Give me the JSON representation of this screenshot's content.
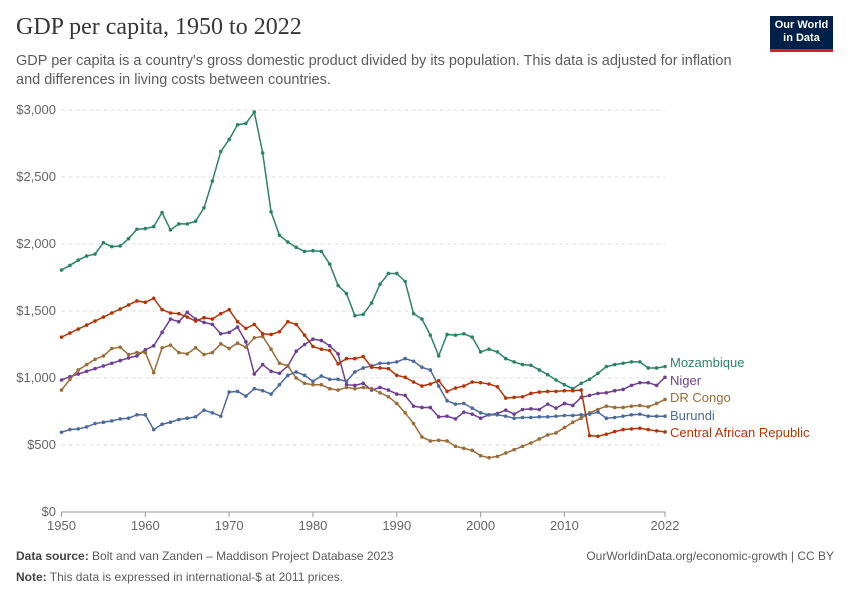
{
  "header": {
    "title": "GDP per capita, 1950 to 2022",
    "subtitle": "GDP per capita is a country's gross domestic product divided by its population. This data is adjusted for inflation and differences in living costs between countries.",
    "logo": "Our World in Data"
  },
  "footer": {
    "source_label": "Data source:",
    "source": "Bolt and van Zanden – Maddison Project Database 2023",
    "note_label": "Note:",
    "note": "This data is expressed in international-$ at 2011 prices.",
    "url": "OurWorldinData.org/economic-growth | CC BY"
  },
  "chart_data": {
    "type": "line",
    "title": "GDP per capita, 1950 to 2022",
    "xlim": [
      1950,
      2022
    ],
    "ylim": [
      0,
      3000
    ],
    "xticks": [
      1950,
      1960,
      1970,
      1980,
      1990,
      2000,
      2010,
      2022
    ],
    "yticks": [
      0,
      500,
      1000,
      1500,
      2000,
      2500,
      3000
    ],
    "ytick_labels": [
      "$0",
      "$500",
      "$1,000",
      "$1,500",
      "$2,000",
      "$2,500",
      "$3,000"
    ],
    "grid": "horizontal dashed",
    "legend": "end-of-line labels right",
    "x_start": 1950,
    "series": [
      {
        "name": "Mozambique",
        "color": "#2c8465",
        "values": [
          1806,
          1840,
          1880,
          1910,
          1925,
          2010,
          1980,
          1985,
          2040,
          2110,
          2115,
          2130,
          2235,
          2105,
          2150,
          2150,
          2170,
          2270,
          2470,
          2690,
          2780,
          2890,
          2900,
          2985,
          2680,
          2240,
          2065,
          2015,
          1975,
          1945,
          1950,
          1945,
          1850,
          1690,
          1630,
          1465,
          1475,
          1560,
          1700,
          1780,
          1780,
          1720,
          1480,
          1440,
          1320,
          1165,
          1325,
          1320,
          1330,
          1305,
          1195,
          1215,
          1195,
          1145,
          1120,
          1100,
          1095,
          1060,
          1025,
          985,
          950,
          920,
          960,
          990,
          1035,
          1085,
          1100,
          1110,
          1120,
          1120,
          1075,
          1075,
          1085
        ]
      },
      {
        "name": "Niger",
        "color": "#6d3e91",
        "values": [
          985,
          1010,
          1030,
          1050,
          1070,
          1090,
          1110,
          1130,
          1150,
          1165,
          1210,
          1240,
          1340,
          1440,
          1420,
          1490,
          1440,
          1415,
          1400,
          1330,
          1340,
          1380,
          1270,
          1030,
          1100,
          1050,
          1035,
          1090,
          1200,
          1250,
          1290,
          1280,
          1240,
          1180,
          950,
          945,
          960,
          910,
          930,
          910,
          880,
          870,
          790,
          780,
          780,
          710,
          715,
          695,
          745,
          730,
          700,
          725,
          735,
          760,
          730,
          765,
          770,
          765,
          805,
          775,
          810,
          795,
          855,
          870,
          885,
          890,
          905,
          915,
          945,
          965,
          965,
          945,
          1005
        ]
      },
      {
        "name": "DR Congo",
        "color": "#996d39",
        "values": [
          910,
          990,
          1060,
          1100,
          1140,
          1165,
          1220,
          1230,
          1175,
          1190,
          1190,
          1040,
          1225,
          1245,
          1190,
          1180,
          1225,
          1175,
          1190,
          1255,
          1220,
          1260,
          1230,
          1300,
          1310,
          1215,
          1110,
          1090,
          1000,
          960,
          950,
          950,
          920,
          910,
          930,
          920,
          930,
          920,
          890,
          860,
          810,
          740,
          660,
          560,
          530,
          535,
          530,
          490,
          475,
          460,
          420,
          405,
          415,
          440,
          465,
          490,
          515,
          545,
          575,
          590,
          630,
          670,
          700,
          740,
          765,
          790,
          780,
          780,
          790,
          795,
          785,
          810,
          840
        ]
      },
      {
        "name": "Burundi",
        "color": "#4c6a9c",
        "values": [
          595,
          615,
          620,
          635,
          660,
          670,
          680,
          695,
          700,
          725,
          725,
          615,
          655,
          670,
          690,
          700,
          710,
          760,
          740,
          715,
          895,
          900,
          865,
          920,
          905,
          880,
          950,
          1020,
          1045,
          1020,
          975,
          1015,
          990,
          990,
          975,
          1045,
          1075,
          1090,
          1110,
          1110,
          1120,
          1145,
          1125,
          1080,
          1060,
          940,
          830,
          805,
          810,
          775,
          740,
          725,
          725,
          715,
          700,
          705,
          705,
          710,
          710,
          715,
          720,
          720,
          725,
          730,
          745,
          700,
          705,
          715,
          725,
          730,
          715,
          715,
          715
        ]
      },
      {
        "name": "Central African Republic",
        "color": "#b13507",
        "values": [
          1305,
          1335,
          1365,
          1395,
          1425,
          1455,
          1485,
          1515,
          1545,
          1575,
          1565,
          1595,
          1510,
          1485,
          1480,
          1455,
          1425,
          1450,
          1440,
          1480,
          1510,
          1420,
          1370,
          1400,
          1330,
          1325,
          1345,
          1420,
          1400,
          1320,
          1235,
          1215,
          1205,
          1105,
          1145,
          1145,
          1160,
          1080,
          1075,
          1070,
          1020,
          1005,
          970,
          940,
          955,
          980,
          900,
          925,
          940,
          970,
          965,
          955,
          935,
          850,
          855,
          860,
          885,
          895,
          900,
          900,
          905,
          905,
          910,
          570,
          565,
          580,
          600,
          615,
          620,
          625,
          615,
          605,
          598
        ]
      }
    ]
  }
}
